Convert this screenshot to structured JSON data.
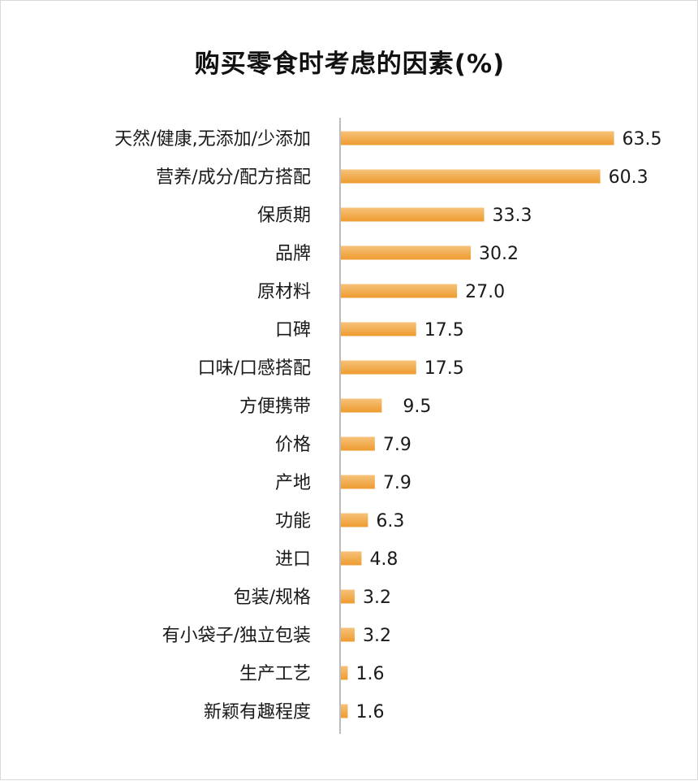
{
  "chart_data": {
    "type": "bar",
    "orientation": "horizontal",
    "title": "购买零食时考虑的因素(%)",
    "categories": [
      "天然/健康,无添加/少添加",
      "营养/成分/配方搭配",
      "保质期",
      "品牌",
      "原材料",
      "口碑",
      "口味/口感搭配",
      "方便携带",
      "价格",
      "产地",
      "功能",
      "进口",
      "包装/规格",
      "有小袋子/独立包装",
      "生产工艺",
      "新颖有趣程度"
    ],
    "values": [
      63.5,
      60.3,
      33.3,
      30.2,
      27.0,
      17.5,
      17.5,
      9.5,
      7.9,
      7.9,
      6.3,
      4.8,
      3.2,
      3.2,
      1.6,
      1.6
    ],
    "value_labels": [
      "63.5",
      "60.3",
      "33.3",
      "30.2",
      "27.0",
      "17.5",
      "17.5",
      "9.5",
      "7.9",
      "7.9",
      "6.3",
      "4.8",
      "3.2",
      "3.2",
      "1.6",
      "1.6"
    ],
    "xlim": [
      0,
      70
    ],
    "grid": false,
    "bar_color": "#ee9b2e",
    "bar_color_light": "#f6c27a",
    "axis_color": "#a6a6a6"
  }
}
